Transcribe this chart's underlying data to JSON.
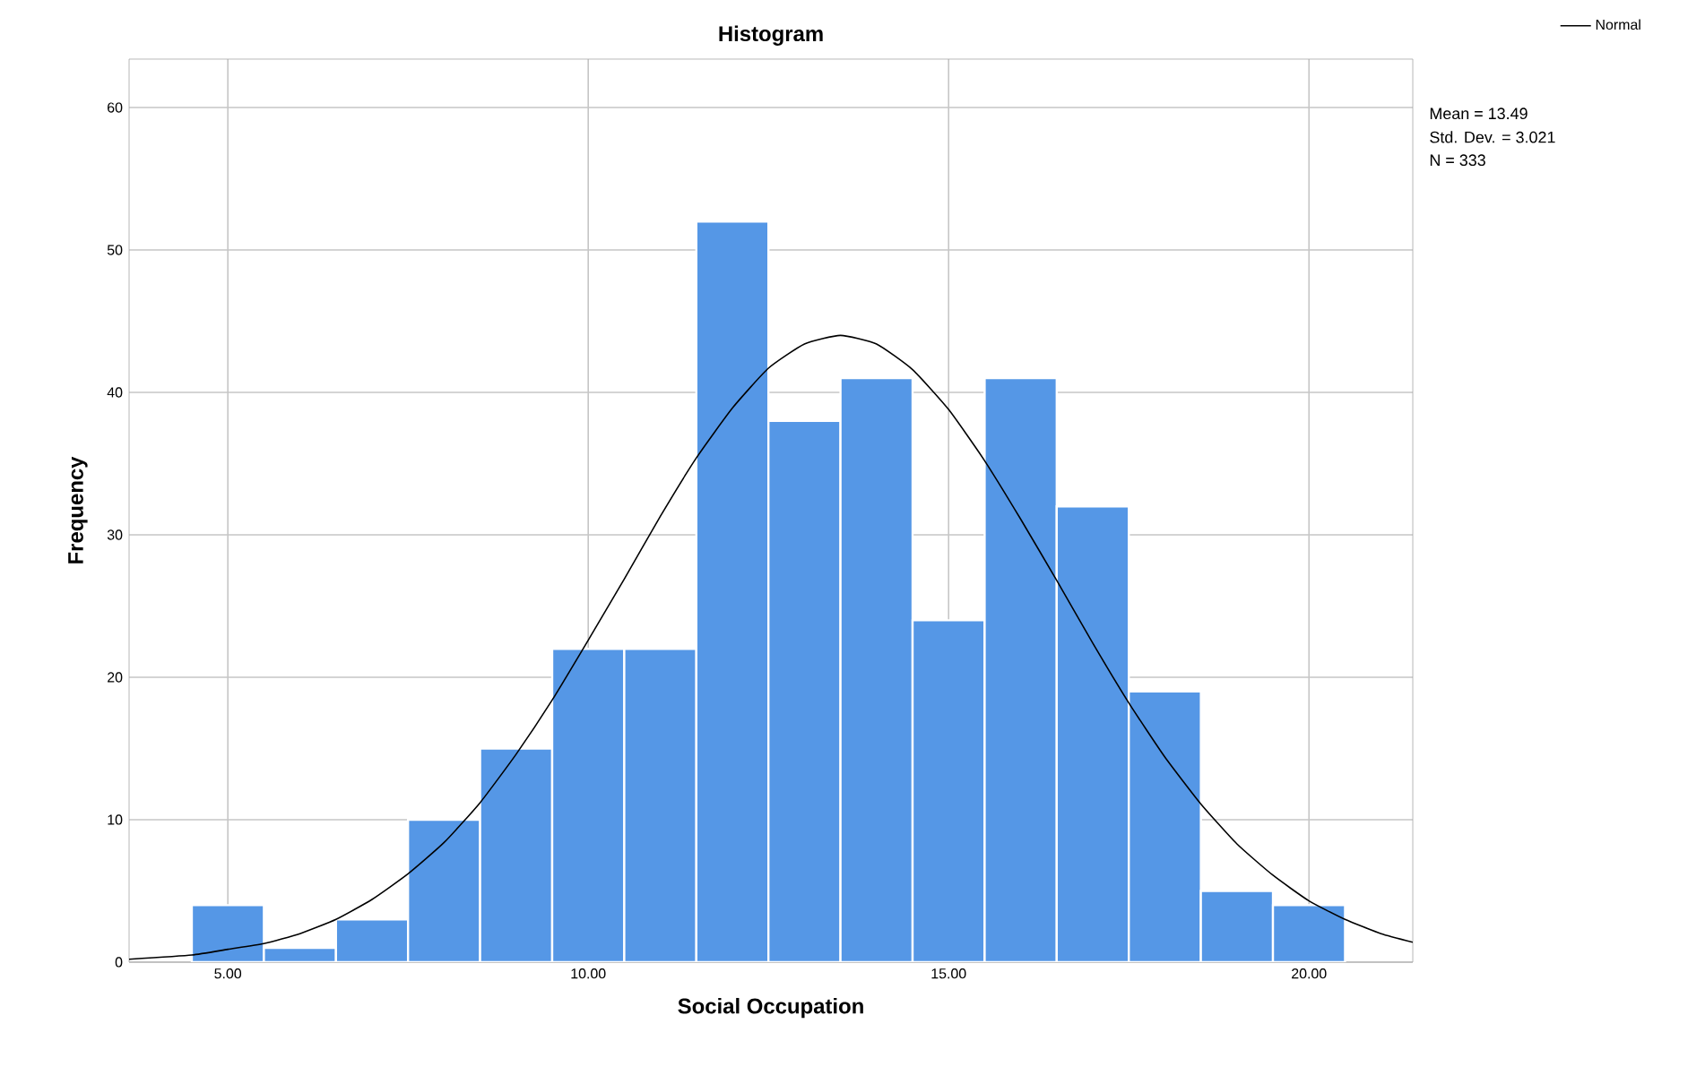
{
  "chart_data": {
    "type": "histogram",
    "title": "Histogram",
    "xlabel": "Social Occupation",
    "ylabel": "Frequency",
    "series": [
      {
        "color": "#5597e6",
        "bins": [
          4.5,
          5.5,
          6.5,
          7.5,
          8.5,
          9.5,
          10.5,
          11.5,
          12.5,
          13.5,
          14.5,
          15.5,
          16.5,
          17.5,
          18.5,
          19.5,
          20.5
        ],
        "values": [
          4,
          1,
          3,
          10,
          15,
          22,
          22,
          52,
          38,
          41,
          24,
          41,
          32,
          19,
          5,
          4
        ]
      },
      {
        "type": "line",
        "name": "Normal",
        "color": "#000000",
        "x": [
          3.63,
          4.5,
          5,
          5.5,
          6,
          6.5,
          7,
          7.5,
          8,
          8.5,
          9,
          9.5,
          10,
          10.5,
          11,
          11.5,
          12,
          12.5,
          13,
          13.5,
          14,
          14.5,
          15,
          15.5,
          16,
          16.5,
          17,
          17.5,
          18,
          18.5,
          19,
          19.5,
          20,
          20.5,
          21,
          21.44
        ],
        "values": [
          0.2,
          0.5,
          0.9,
          1.3,
          2.0,
          3.0,
          4.4,
          6.2,
          8.4,
          11.2,
          14.6,
          18.4,
          22.6,
          26.9,
          31.3,
          35.4,
          38.9,
          41.7,
          43.4,
          44.0,
          43.4,
          41.6,
          38.8,
          35.2,
          31.1,
          26.8,
          22.4,
          18.2,
          14.4,
          11.1,
          8.3,
          6.1,
          4.3,
          3.0,
          2.0,
          1.4
        ]
      }
    ],
    "xlim": [
      3.63,
      21.44
    ],
    "ylim": [
      0,
      63.4
    ],
    "xticks": [
      {
        "value": 5,
        "label": "5.00"
      },
      {
        "value": 10,
        "label": "10.00"
      },
      {
        "value": 15,
        "label": "15.00"
      },
      {
        "value": 20,
        "label": "20.00"
      }
    ],
    "yticks": [
      0,
      10,
      20,
      30,
      40,
      50,
      60
    ],
    "grid": true,
    "legend": "top right",
    "annotations": [
      "Mean = 13.49",
      "Std. Dev. = 3.021",
      "N = 333"
    ]
  }
}
